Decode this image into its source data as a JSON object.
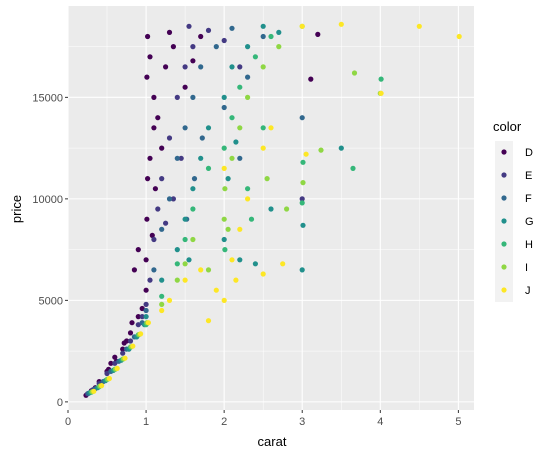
{
  "chart_data": {
    "type": "scatter",
    "xlabel": "carat",
    "ylabel": "price",
    "xlim": [
      0,
      5.2
    ],
    "ylim": [
      -400,
      19500
    ],
    "x_ticks": [
      0,
      1,
      2,
      3,
      4,
      5
    ],
    "y_ticks": [
      0,
      5000,
      10000,
      15000
    ],
    "grid": true,
    "background": "#EBEBEB",
    "legend": {
      "title": "color",
      "placement": "right"
    },
    "series": [
      {
        "name": "D",
        "color": "#440154",
        "points": [
          [
            0.23,
            326
          ],
          [
            0.3,
            550
          ],
          [
            0.35,
            700
          ],
          [
            0.4,
            1000
          ],
          [
            0.5,
            1500
          ],
          [
            0.55,
            1900
          ],
          [
            0.6,
            2200
          ],
          [
            0.7,
            2600
          ],
          [
            0.75,
            3000
          ],
          [
            0.8,
            3400
          ],
          [
            0.9,
            4200
          ],
          [
            0.95,
            4600
          ],
          [
            1.0,
            5500
          ],
          [
            1.0,
            7000
          ],
          [
            1.01,
            9000
          ],
          [
            1.02,
            11000
          ],
          [
            1.05,
            12000
          ],
          [
            1.1,
            13500
          ],
          [
            1.01,
            16000
          ],
          [
            1.02,
            18000
          ],
          [
            1.05,
            17000
          ],
          [
            1.1,
            15000
          ],
          [
            1.15,
            14000
          ],
          [
            1.2,
            12500
          ],
          [
            1.25,
            16500
          ],
          [
            1.3,
            18200
          ],
          [
            1.35,
            17500
          ],
          [
            1.5,
            15500
          ],
          [
            1.6,
            16800
          ],
          [
            1.7,
            18000
          ],
          [
            0.85,
            6500
          ],
          [
            0.9,
            7500
          ],
          [
            0.82,
            3900
          ],
          [
            3.11,
            15900
          ],
          [
            3.2,
            18100
          ],
          [
            0.72,
            2900
          ],
          [
            0.62,
            2000
          ],
          [
            0.52,
            1600
          ],
          [
            1.12,
            10500
          ],
          [
            1.08,
            8200
          ]
        ]
      },
      {
        "name": "E",
        "color": "#443A83",
        "points": [
          [
            0.25,
            400
          ],
          [
            0.32,
            600
          ],
          [
            0.4,
            900
          ],
          [
            0.5,
            1400
          ],
          [
            0.6,
            1900
          ],
          [
            0.7,
            2400
          ],
          [
            0.8,
            3000
          ],
          [
            0.9,
            3800
          ],
          [
            1.0,
            4800
          ],
          [
            1.05,
            6000
          ],
          [
            1.1,
            8000
          ],
          [
            1.15,
            9500
          ],
          [
            1.2,
            11000
          ],
          [
            1.3,
            13000
          ],
          [
            1.4,
            15000
          ],
          [
            1.5,
            16500
          ],
          [
            1.6,
            17500
          ],
          [
            1.8,
            18300
          ],
          [
            2.0,
            17800
          ],
          [
            1.45,
            12000
          ],
          [
            1.35,
            10000
          ],
          [
            0.95,
            4200
          ],
          [
            2.2,
            16500
          ],
          [
            3.0,
            10000
          ],
          [
            1.55,
            18500
          ],
          [
            1.25,
            8800
          ]
        ]
      },
      {
        "name": "F",
        "color": "#31688E",
        "points": [
          [
            0.26,
            420
          ],
          [
            0.35,
            650
          ],
          [
            0.45,
            1000
          ],
          [
            0.55,
            1500
          ],
          [
            0.65,
            2000
          ],
          [
            0.75,
            2600
          ],
          [
            0.85,
            3200
          ],
          [
            0.95,
            3900
          ],
          [
            1.0,
            4500
          ],
          [
            1.1,
            6500
          ],
          [
            1.2,
            8500
          ],
          [
            1.3,
            10000
          ],
          [
            1.4,
            12000
          ],
          [
            1.5,
            13500
          ],
          [
            1.6,
            15000
          ],
          [
            1.7,
            16500
          ],
          [
            1.9,
            17500
          ],
          [
            2.1,
            18400
          ],
          [
            2.3,
            16000
          ],
          [
            2.5,
            18000
          ],
          [
            1.52,
            9000
          ],
          [
            1.62,
            11000
          ],
          [
            1.72,
            13000
          ],
          [
            2.0,
            14500
          ],
          [
            3.0,
            14000
          ],
          [
            2.2,
            12000
          ]
        ]
      },
      {
        "name": "G",
        "color": "#21908C",
        "points": [
          [
            0.28,
            450
          ],
          [
            0.38,
            700
          ],
          [
            0.48,
            1050
          ],
          [
            0.58,
            1550
          ],
          [
            0.68,
            2050
          ],
          [
            0.78,
            2600
          ],
          [
            0.88,
            3200
          ],
          [
            0.98,
            3800
          ],
          [
            1.0,
            4200
          ],
          [
            1.2,
            6000
          ],
          [
            1.4,
            7500
          ],
          [
            1.5,
            9000
          ],
          [
            1.6,
            10500
          ],
          [
            1.7,
            12000
          ],
          [
            1.8,
            13500
          ],
          [
            2.0,
            15000
          ],
          [
            2.1,
            16500
          ],
          [
            2.3,
            17500
          ],
          [
            2.5,
            18500
          ],
          [
            2.7,
            18200
          ],
          [
            2.0,
            8000
          ],
          [
            2.2,
            7000
          ],
          [
            2.4,
            6800
          ],
          [
            3.0,
            6500
          ],
          [
            3.01,
            8700
          ],
          [
            3.5,
            12500
          ],
          [
            2.05,
            11000
          ],
          [
            2.15,
            12800
          ],
          [
            1.55,
            7000
          ],
          [
            2.6,
            9500
          ]
        ]
      },
      {
        "name": "H",
        "color": "#35B779",
        "points": [
          [
            0.3,
            480
          ],
          [
            0.4,
            750
          ],
          [
            0.5,
            1100
          ],
          [
            0.6,
            1600
          ],
          [
            0.7,
            2100
          ],
          [
            0.8,
            2700
          ],
          [
            0.9,
            3300
          ],
          [
            1.0,
            3800
          ],
          [
            1.2,
            5200
          ],
          [
            1.4,
            6800
          ],
          [
            1.5,
            8000
          ],
          [
            1.6,
            9500
          ],
          [
            1.8,
            11500
          ],
          [
            2.0,
            12500
          ],
          [
            2.1,
            14000
          ],
          [
            2.2,
            15500
          ],
          [
            2.4,
            17000
          ],
          [
            2.6,
            18000
          ],
          [
            2.3,
            10500
          ],
          [
            2.5,
            13500
          ],
          [
            3.65,
            11500
          ],
          [
            3.01,
            11800
          ],
          [
            4.01,
            15900
          ],
          [
            3.0,
            9800
          ],
          [
            2.01,
            7500
          ],
          [
            2.35,
            9000
          ]
        ]
      },
      {
        "name": "I",
        "color": "#8FD744",
        "points": [
          [
            0.31,
            500
          ],
          [
            0.41,
            780
          ],
          [
            0.51,
            1120
          ],
          [
            0.61,
            1620
          ],
          [
            0.71,
            2120
          ],
          [
            0.81,
            2720
          ],
          [
            0.91,
            3320
          ],
          [
            1.01,
            3900
          ],
          [
            1.2,
            4800
          ],
          [
            1.4,
            6000
          ],
          [
            1.5,
            6800
          ],
          [
            1.6,
            8000
          ],
          [
            2.0,
            9000
          ],
          [
            2.01,
            10500
          ],
          [
            2.1,
            12000
          ],
          [
            2.2,
            13500
          ],
          [
            2.3,
            15000
          ],
          [
            2.5,
            16500
          ],
          [
            2.7,
            17500
          ],
          [
            3.0,
            18500
          ],
          [
            3.67,
            16200
          ],
          [
            4.0,
            15200
          ],
          [
            2.55,
            11000
          ],
          [
            3.01,
            10800
          ],
          [
            2.8,
            9500
          ],
          [
            3.24,
            12400
          ],
          [
            2.05,
            8500
          ],
          [
            1.8,
            6500
          ]
        ]
      },
      {
        "name": "J",
        "color": "#FDE725",
        "points": [
          [
            0.33,
            520
          ],
          [
            0.43,
            800
          ],
          [
            0.53,
            1150
          ],
          [
            0.63,
            1650
          ],
          [
            0.73,
            2150
          ],
          [
            0.83,
            2750
          ],
          [
            0.93,
            3350
          ],
          [
            1.03,
            3900
          ],
          [
            1.2,
            4500
          ],
          [
            1.3,
            5000
          ],
          [
            1.5,
            6000
          ],
          [
            1.7,
            6500
          ],
          [
            1.8,
            4000
          ],
          [
            2.0,
            5000
          ],
          [
            2.1,
            7000
          ],
          [
            2.2,
            8500
          ],
          [
            2.3,
            10000
          ],
          [
            2.5,
            12500
          ],
          [
            2.6,
            13500
          ],
          [
            2.0,
            11500
          ],
          [
            3.0,
            18500
          ],
          [
            3.5,
            18600
          ],
          [
            4.5,
            18500
          ],
          [
            5.01,
            18000
          ],
          [
            4.01,
            15200
          ],
          [
            3.05,
            12200
          ],
          [
            2.75,
            6800
          ],
          [
            2.5,
            6300
          ],
          [
            1.9,
            5500
          ],
          [
            2.15,
            6000
          ]
        ]
      }
    ]
  }
}
